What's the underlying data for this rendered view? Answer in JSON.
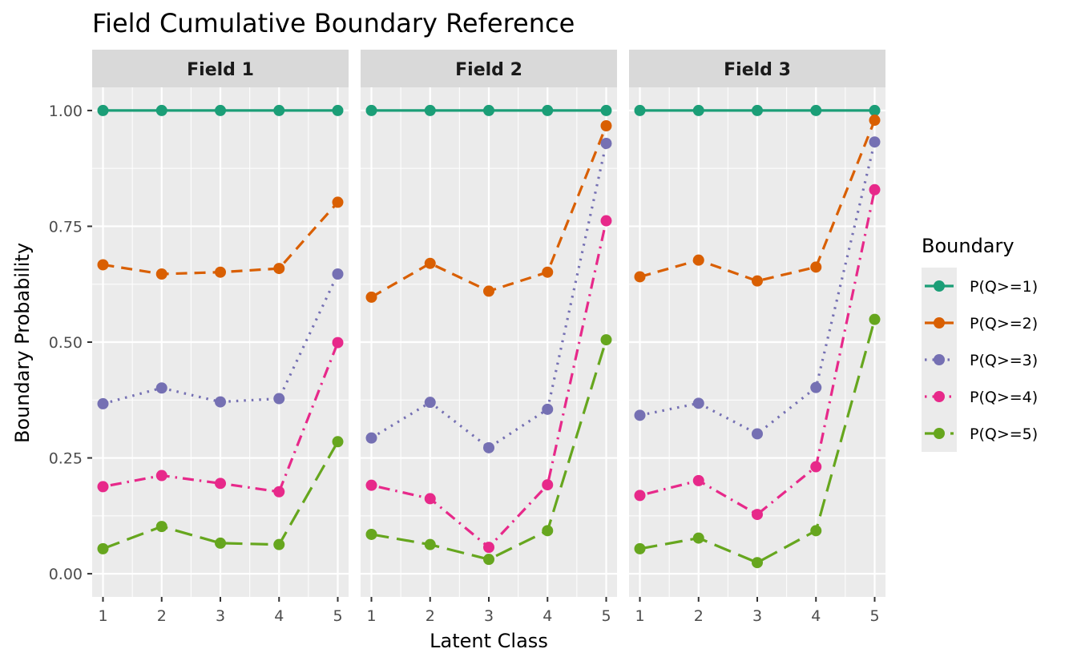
{
  "chart_data": {
    "type": "line",
    "title": "Field Cumulative Boundary Reference",
    "xlabel": "Latent Class",
    "ylabel": "Boundary Probability",
    "x": [
      1,
      2,
      3,
      4,
      5
    ],
    "x_tick_labels": [
      "1",
      "2",
      "3",
      "4",
      "5"
    ],
    "ylim": [
      -0.05,
      1.05
    ],
    "y_ticks": [
      0.0,
      0.25,
      0.5,
      0.75,
      1.0
    ],
    "y_tick_labels": [
      "0.00",
      "0.25",
      "0.50",
      "0.75",
      "1.00"
    ],
    "grid": true,
    "legend": {
      "title": "Boundary",
      "placement": "right",
      "entries": [
        "P(Q>=1)",
        "P(Q>=2)",
        "P(Q>=3)",
        "P(Q>=4)",
        "P(Q>=5)"
      ]
    },
    "series_styles": [
      {
        "name": "P(Q>=1)",
        "color": "#1B9E77",
        "dash": "solid"
      },
      {
        "name": "P(Q>=2)",
        "color": "#D95F02",
        "dash": "dashed"
      },
      {
        "name": "P(Q>=3)",
        "color": "#7570B3",
        "dash": "dotted"
      },
      {
        "name": "P(Q>=4)",
        "color": "#E7298A",
        "dash": "dotdash"
      },
      {
        "name": "P(Q>=5)",
        "color": "#66A61E",
        "dash": "longdash"
      }
    ],
    "panels": [
      {
        "label": "Field 1",
        "series": [
          {
            "name": "P(Q>=1)",
            "values": [
              1.0,
              1.0,
              1.0,
              1.0,
              1.0
            ]
          },
          {
            "name": "P(Q>=2)",
            "values": [
              0.667,
              0.647,
              0.651,
              0.659,
              0.802
            ]
          },
          {
            "name": "P(Q>=3)",
            "values": [
              0.367,
              0.401,
              0.371,
              0.378,
              0.647
            ]
          },
          {
            "name": "P(Q>=4)",
            "values": [
              0.188,
              0.212,
              0.195,
              0.177,
              0.499
            ]
          },
          {
            "name": "P(Q>=5)",
            "values": [
              0.054,
              0.102,
              0.066,
              0.063,
              0.285
            ]
          }
        ]
      },
      {
        "label": "Field 2",
        "series": [
          {
            "name": "P(Q>=1)",
            "values": [
              1.0,
              1.0,
              1.0,
              1.0,
              1.0
            ]
          },
          {
            "name": "P(Q>=2)",
            "values": [
              0.597,
              0.67,
              0.61,
              0.651,
              0.967
            ]
          },
          {
            "name": "P(Q>=3)",
            "values": [
              0.293,
              0.37,
              0.272,
              0.355,
              0.929
            ]
          },
          {
            "name": "P(Q>=4)",
            "values": [
              0.191,
              0.162,
              0.057,
              0.192,
              0.762
            ]
          },
          {
            "name": "P(Q>=5)",
            "values": [
              0.085,
              0.063,
              0.031,
              0.093,
              0.505
            ]
          }
        ]
      },
      {
        "label": "Field 3",
        "series": [
          {
            "name": "P(Q>=1)",
            "values": [
              1.0,
              1.0,
              1.0,
              1.0,
              1.0
            ]
          },
          {
            "name": "P(Q>=2)",
            "values": [
              0.641,
              0.677,
              0.632,
              0.662,
              0.979
            ]
          },
          {
            "name": "P(Q>=3)",
            "values": [
              0.342,
              0.368,
              0.302,
              0.402,
              0.932
            ]
          },
          {
            "name": "P(Q>=4)",
            "values": [
              0.169,
              0.201,
              0.128,
              0.231,
              0.829
            ]
          },
          {
            "name": "P(Q>=5)",
            "values": [
              0.054,
              0.077,
              0.024,
              0.093,
              0.549
            ]
          }
        ]
      }
    ]
  }
}
